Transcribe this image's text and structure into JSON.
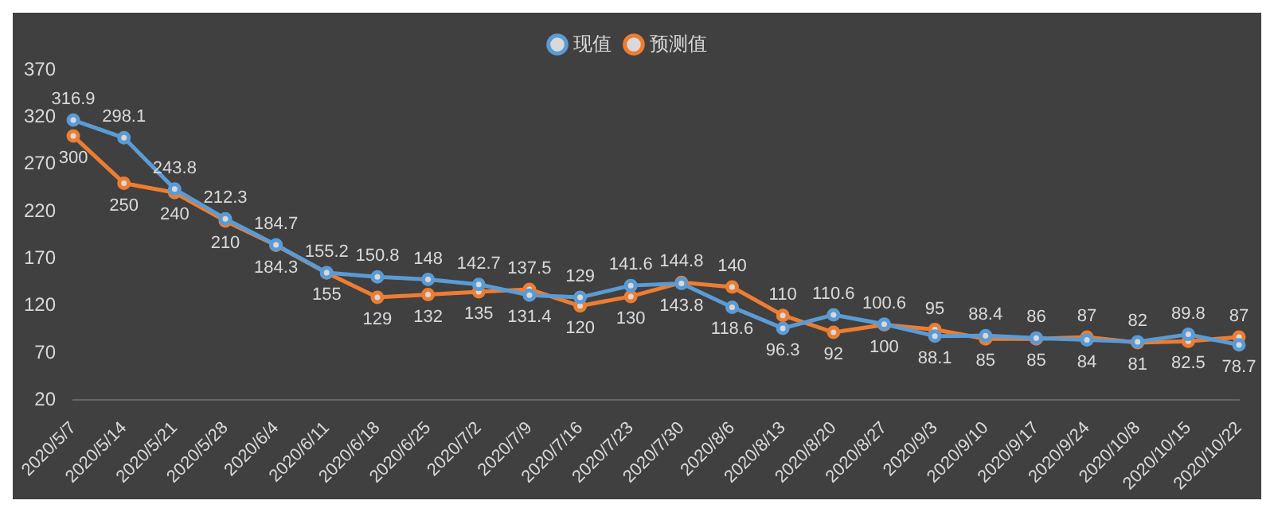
{
  "chart_data": {
    "type": "line",
    "categories": [
      "2020/5/7",
      "2020/5/14",
      "2020/5/21",
      "2020/5/28",
      "2020/6/4",
      "2020/6/11",
      "2020/6/18",
      "2020/6/25",
      "2020/7/2",
      "2020/7/9",
      "2020/7/16",
      "2020/7/23",
      "2020/7/30",
      "2020/8/6",
      "2020/8/13",
      "2020/8/20",
      "2020/8/27",
      "2020/9/3",
      "2020/9/10",
      "2020/9/17",
      "2020/9/24",
      "2020/10/8",
      "2020/10/15",
      "2020/10/22"
    ],
    "series": [
      {
        "name": "现值",
        "color": "#5b9bd5",
        "values": [
          316.9,
          298.1,
          243.8,
          212.3,
          184.7,
          155.2,
          150.8,
          148,
          142.7,
          131.4,
          129,
          141.6,
          143.8,
          118.6,
          96.3,
          110.6,
          100.6,
          88.1,
          88.4,
          86,
          84,
          82,
          89.8,
          78.7
        ]
      },
      {
        "name": "预测值",
        "color": "#ed7d31",
        "values": [
          300,
          250,
          240,
          210,
          184.3,
          155,
          129,
          132,
          135,
          137.5,
          120,
          130,
          144.8,
          140,
          110,
          92,
          100,
          95,
          85,
          85,
          87,
          81,
          82.5,
          87
        ]
      }
    ],
    "ylim": [
      20,
      370
    ],
    "yticks": [
      20,
      70,
      120,
      170,
      220,
      270,
      320,
      370
    ],
    "legend": "top",
    "marker": "circle",
    "data_labels": true,
    "grid": false
  }
}
